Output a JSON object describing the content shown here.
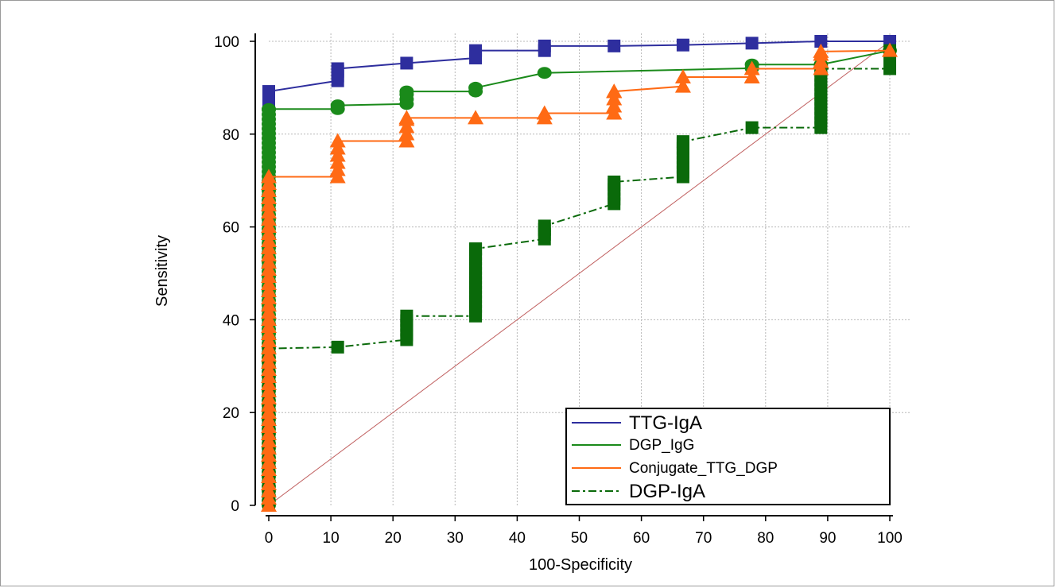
{
  "chart_data": {
    "type": "line",
    "title": "",
    "xlabel": "100-Specificity",
    "ylabel": "Sensitivity",
    "xlim": [
      0,
      100
    ],
    "ylim": [
      0,
      100
    ],
    "xticks": [
      "0",
      "10",
      "20",
      "30",
      "40",
      "50",
      "60",
      "70",
      "80",
      "90",
      "100"
    ],
    "yticks": [
      "0",
      "20",
      "40",
      "60",
      "80",
      "100"
    ],
    "grid": true,
    "legend_position": "bottom-right",
    "reference_line": {
      "from": [
        0,
        0
      ],
      "to": [
        100,
        100
      ],
      "color": "#c06060"
    },
    "series": [
      {
        "name": "TTG-IgA",
        "color": "#2e2e9e",
        "style": "solid",
        "marker": "square",
        "points": [
          [
            0,
            0
          ],
          [
            0,
            89.2
          ],
          [
            11.1,
            91.5
          ],
          [
            11.1,
            94.1
          ],
          [
            22.2,
            95.3
          ],
          [
            33.3,
            96.4
          ],
          [
            33.3,
            98.0
          ],
          [
            44.4,
            98.0
          ],
          [
            44.4,
            99.0
          ],
          [
            55.6,
            99.0
          ],
          [
            66.7,
            99.2
          ],
          [
            77.8,
            99.6
          ],
          [
            88.9,
            100
          ],
          [
            100,
            100
          ]
        ]
      },
      {
        "name": "DGP_IgG",
        "color": "#1a8a1a",
        "style": "solid",
        "marker": "circle",
        "points": [
          [
            0,
            0
          ],
          [
            0,
            85.4
          ],
          [
            11.1,
            85.4
          ],
          [
            11.1,
            86.2
          ],
          [
            22.2,
            86.5
          ],
          [
            22.2,
            89.2
          ],
          [
            33.3,
            89.2
          ],
          [
            33.3,
            90.0
          ],
          [
            44.4,
            93.2
          ],
          [
            77.8,
            94.2
          ],
          [
            77.8,
            95.0
          ],
          [
            88.9,
            95.0
          ],
          [
            100,
            98.0
          ]
        ]
      },
      {
        "name": "Conjugate_TTG_DGP",
        "color": "#ff6a14",
        "style": "solid",
        "marker": "triangle",
        "points": [
          [
            0,
            0
          ],
          [
            0,
            70.8
          ],
          [
            11.1,
            70.8
          ],
          [
            11.1,
            78.5
          ],
          [
            22.2,
            78.5
          ],
          [
            22.2,
            83.5
          ],
          [
            33.3,
            83.5
          ],
          [
            44.4,
            83.5
          ],
          [
            44.4,
            84.5
          ],
          [
            55.6,
            84.5
          ],
          [
            55.6,
            89.2
          ],
          [
            66.7,
            90.3
          ],
          [
            66.7,
            92.3
          ],
          [
            77.8,
            92.3
          ],
          [
            77.8,
            94.1
          ],
          [
            88.9,
            94.1
          ],
          [
            88.9,
            97.8
          ],
          [
            100,
            98.0
          ]
        ]
      },
      {
        "name": "DGP-IgA",
        "color": "#0a6a0a",
        "style": "dashdot",
        "marker": "square",
        "points": [
          [
            0,
            0
          ],
          [
            0,
            33.8
          ],
          [
            11.1,
            34.1
          ],
          [
            22.2,
            35.7
          ],
          [
            22.2,
            40.8
          ],
          [
            33.3,
            40.8
          ],
          [
            33.3,
            55.3
          ],
          [
            44.4,
            57.4
          ],
          [
            44.4,
            60.2
          ],
          [
            55.6,
            65.0
          ],
          [
            55.6,
            69.7
          ],
          [
            66.7,
            70.8
          ],
          [
            66.7,
            78.4
          ],
          [
            77.8,
            81.4
          ],
          [
            88.9,
            81.4
          ],
          [
            88.9,
            94.1
          ],
          [
            100,
            94.1
          ],
          [
            100,
            98.0
          ]
        ]
      }
    ]
  }
}
